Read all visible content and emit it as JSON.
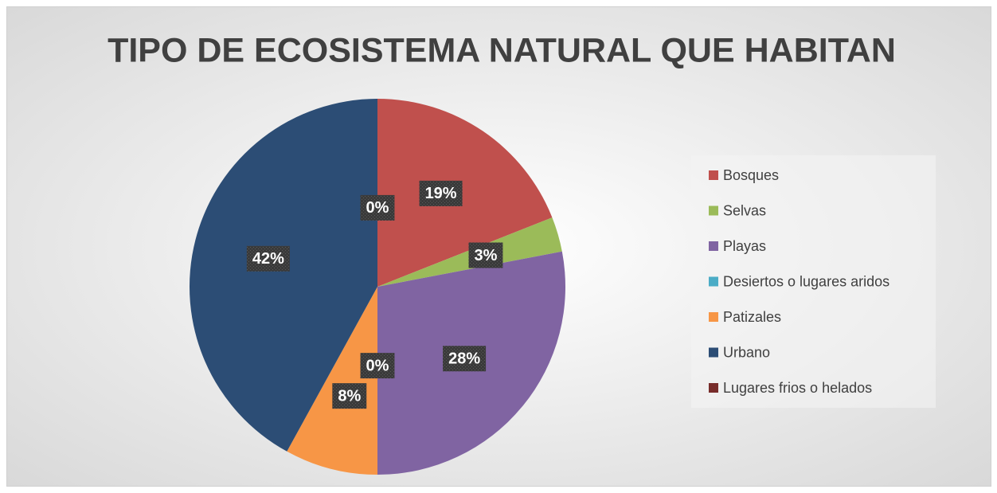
{
  "chart_data": {
    "type": "pie",
    "title": "TIPO DE ECOSISTEMA NATURAL QUE HABITAN",
    "categories": [
      "Bosques",
      "Selvas",
      "Playas",
      "Desiertos o lugares aridos",
      "Patizales",
      "Urbano",
      "Lugares frios o helados"
    ],
    "values": [
      19,
      3,
      28,
      0,
      8,
      42,
      0
    ],
    "value_labels": [
      "19%",
      "3%",
      "28%",
      "0%",
      "8%",
      "42%",
      "0%"
    ],
    "colors": [
      "#c0504d",
      "#9bbb59",
      "#8064a2",
      "#4bacc6",
      "#f79646",
      "#2c4d75",
      "#772c2a"
    ],
    "legend": "right"
  }
}
